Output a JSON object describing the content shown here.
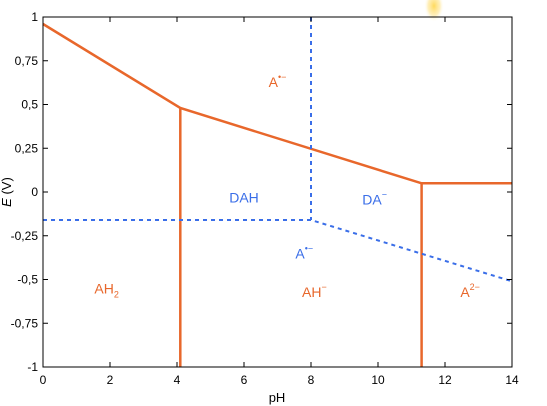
{
  "chart_data": {
    "type": "line",
    "xlabel": "pH",
    "ylabel": "E (V)",
    "xlim": [
      0,
      14
    ],
    "ylim": [
      -1,
      1
    ],
    "x_ticks": [
      {
        "v": 0,
        "label": "0"
      },
      {
        "v": 2,
        "label": "2"
      },
      {
        "v": 4,
        "label": "4"
      },
      {
        "v": 6,
        "label": "6"
      },
      {
        "v": 8,
        "label": "8"
      },
      {
        "v": 10,
        "label": "10"
      },
      {
        "v": 12,
        "label": "12"
      },
      {
        "v": 14,
        "label": "14"
      }
    ],
    "y_ticks": [
      {
        "v": 1,
        "label": "1"
      },
      {
        "v": 0.75,
        "label": "0,75"
      },
      {
        "v": 0.5,
        "label": "0,5"
      },
      {
        "v": 0.25,
        "label": "0,25"
      },
      {
        "v": 0,
        "label": "0"
      },
      {
        "v": -0.25,
        "label": "-0,25"
      },
      {
        "v": -0.5,
        "label": "-0,5"
      },
      {
        "v": -0.75,
        "label": "-0,75"
      },
      {
        "v": -1,
        "label": "-1"
      }
    ],
    "grid": false,
    "colors": {
      "orange": "#e8672b",
      "blue": "#3a6ee8",
      "axis": "#000000"
    },
    "series": [
      {
        "style": "solid",
        "color": "orange",
        "points": [
          [
            0,
            0.96
          ],
          [
            4.1,
            0.48
          ],
          [
            11.3,
            0.05
          ],
          [
            14,
            0.05
          ]
        ]
      },
      {
        "style": "solid",
        "color": "orange",
        "points": [
          [
            4.1,
            0.48
          ],
          [
            4.1,
            -1
          ]
        ]
      },
      {
        "style": "solid",
        "color": "orange",
        "points": [
          [
            11.3,
            0.05
          ],
          [
            11.3,
            -1
          ]
        ]
      },
      {
        "style": "dashed",
        "color": "blue",
        "points": [
          [
            0,
            -0.16
          ],
          [
            8,
            -0.16
          ],
          [
            14,
            -0.51
          ]
        ]
      },
      {
        "style": "dashed",
        "color": "blue",
        "points": [
          [
            8,
            1
          ],
          [
            8,
            -0.16
          ]
        ]
      }
    ],
    "annotations": [
      {
        "x": 7.0,
        "y": 0.6,
        "base": "A",
        "sup": "•−",
        "sub": "",
        "color": "orange"
      },
      {
        "x": 6.0,
        "y": -0.06,
        "base": "DAH",
        "sup": "",
        "sub": "",
        "color": "blue"
      },
      {
        "x": 9.9,
        "y": -0.07,
        "base": "DA",
        "sup": "−",
        "sub": "",
        "color": "blue"
      },
      {
        "x": 7.8,
        "y": -0.38,
        "base": "A",
        "sup": "•−",
        "sub": "",
        "color": "blue"
      },
      {
        "x": 1.9,
        "y": -0.58,
        "base": "AH",
        "sup": "",
        "sub": "2",
        "color": "orange"
      },
      {
        "x": 8.1,
        "y": -0.6,
        "base": "AH",
        "sup": "−",
        "sub": "",
        "color": "orange"
      },
      {
        "x": 12.75,
        "y": -0.6,
        "base": "A",
        "sup": "2−",
        "sub": "",
        "color": "orange"
      }
    ]
  }
}
